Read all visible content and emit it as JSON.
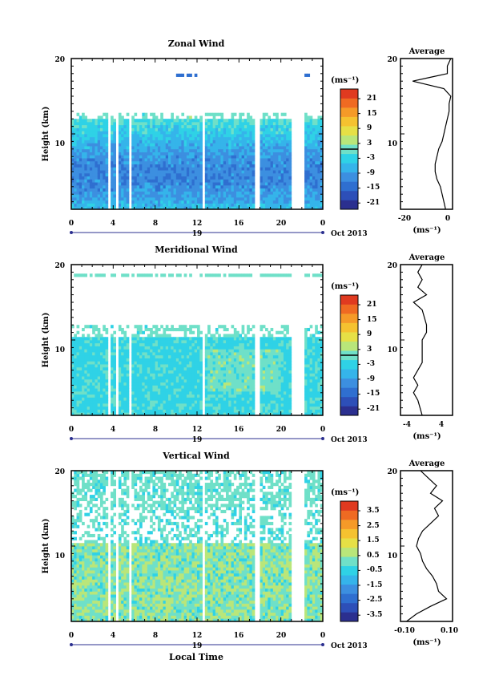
{
  "chart_data": [
    {
      "type": "heatmap",
      "title": "Zonal Wind",
      "ylabel": "Height (km)",
      "ylim": [
        0,
        20
      ],
      "yticks": [
        "10",
        "20"
      ],
      "xticks": [
        "0",
        "4",
        "8",
        "12",
        "16",
        "20",
        "0"
      ],
      "xlim": [
        0,
        24
      ],
      "date_day": "19",
      "date_month": "Oct 2013",
      "colorbar": {
        "unit": "(ms⁻¹)",
        "ticks": [
          "21",
          "15",
          "9",
          "3",
          "-3",
          "-9",
          "-15",
          "-21"
        ],
        "range": [
          -24,
          24
        ],
        "contour_level": 0
      },
      "average": {
        "title": "Average",
        "xlabel": "(ms⁻¹)",
        "xticks": [
          "-20",
          "0"
        ],
        "xlim": [
          -27,
          3
        ],
        "yticks": [
          "10",
          "20"
        ],
        "profile": [
          [
            0,
            -1
          ],
          [
            1,
            -2
          ],
          [
            2,
            -3
          ],
          [
            3,
            -4
          ],
          [
            4,
            -6
          ],
          [
            5,
            -7
          ],
          [
            6,
            -7
          ],
          [
            7,
            -6
          ],
          [
            8,
            -5
          ],
          [
            9,
            -3
          ],
          [
            10,
            -2
          ],
          [
            11,
            -1
          ],
          [
            12,
            0
          ],
          [
            13,
            1
          ],
          [
            14,
            1
          ],
          [
            15,
            2
          ],
          [
            16,
            -2
          ],
          [
            17,
            -20
          ],
          [
            17.5,
            -10
          ],
          [
            18,
            0
          ],
          [
            19,
            0
          ],
          [
            20,
            2
          ]
        ]
      }
    },
    {
      "type": "heatmap",
      "title": "Meridional Wind",
      "ylabel": "Height (km)",
      "ylim": [
        0,
        20
      ],
      "yticks": [
        "10",
        "20"
      ],
      "xticks": [
        "0",
        "4",
        "8",
        "12",
        "16",
        "20",
        "0"
      ],
      "xlim": [
        0,
        24
      ],
      "date_day": "19",
      "date_month": "Oct 2013",
      "colorbar": {
        "unit": "(ms⁻¹)",
        "ticks": [
          "21",
          "15",
          "9",
          "3",
          "-3",
          "-9",
          "-15",
          "-21"
        ],
        "range": [
          -24,
          24
        ],
        "contour_level": 0
      },
      "average": {
        "title": "Average",
        "xlabel": "(ms⁻¹)",
        "xticks": [
          "-4",
          "4"
        ],
        "xlim": [
          -6,
          6
        ],
        "yticks": [
          "10",
          "20"
        ],
        "profile": [
          [
            0,
            -1
          ],
          [
            1,
            -1.5
          ],
          [
            2,
            -2
          ],
          [
            3,
            -3
          ],
          [
            4,
            -2
          ],
          [
            5,
            -3
          ],
          [
            6,
            -2
          ],
          [
            7,
            -1
          ],
          [
            8,
            -1
          ],
          [
            9,
            -1
          ],
          [
            10,
            -1
          ],
          [
            11,
            0
          ],
          [
            12,
            0
          ],
          [
            13,
            -0.5
          ],
          [
            14,
            -1
          ],
          [
            15,
            -3
          ],
          [
            16,
            0
          ],
          [
            17,
            -2
          ],
          [
            18,
            -1
          ],
          [
            19,
            -2
          ],
          [
            20,
            -1
          ]
        ]
      }
    },
    {
      "type": "heatmap",
      "title": "Vertical Wind",
      "ylabel": "Height (km)",
      "ylim": [
        0,
        20
      ],
      "yticks": [
        "10",
        "20"
      ],
      "xticks": [
        "0",
        "4",
        "8",
        "12",
        "16",
        "20",
        "0"
      ],
      "xlim": [
        0,
        24
      ],
      "date_day": "19",
      "date_month": "Oct 2013",
      "xlabel": "Local Time",
      "colorbar": {
        "unit": "(ms⁻¹)",
        "ticks": [
          "3.5",
          "2.5",
          "1.5",
          "0.5",
          "-0.5",
          "-1.5",
          "-2.5",
          "-3.5"
        ],
        "range": [
          -4,
          4
        ]
      },
      "average": {
        "title": "Average",
        "xlabel": "(ms⁻¹)",
        "xticks": [
          "-0.10",
          "0.10"
        ],
        "xlim": [
          -0.13,
          0.13
        ],
        "yticks": [
          "10",
          "20"
        ],
        "profile": [
          [
            0,
            -0.1
          ],
          [
            1,
            -0.05
          ],
          [
            2,
            0.02
          ],
          [
            3,
            0.1
          ],
          [
            4,
            0.06
          ],
          [
            5,
            0.05
          ],
          [
            6,
            0.03
          ],
          [
            7,
            0.0
          ],
          [
            8,
            -0.02
          ],
          [
            9,
            -0.03
          ],
          [
            10,
            -0.05
          ],
          [
            11,
            -0.04
          ],
          [
            12,
            -0.02
          ],
          [
            13,
            0.02
          ],
          [
            14,
            0.06
          ],
          [
            15,
            0.04
          ],
          [
            16,
            0.08
          ],
          [
            17,
            0.02
          ],
          [
            18,
            0.05
          ],
          [
            19,
            0.01
          ],
          [
            20,
            -0.03
          ]
        ]
      }
    }
  ],
  "colors": {
    "palette": [
      "#2b2f8f",
      "#2d4fb8",
      "#2f6fd0",
      "#3c8fe0",
      "#35b4ea",
      "#2fd2e6",
      "#6fe0c8",
      "#b9e67a",
      "#e6e046",
      "#f5c230",
      "#f59a28",
      "#ef6a22",
      "#e03a20"
    ],
    "missing": "#ffffff",
    "contour": "#000000"
  }
}
